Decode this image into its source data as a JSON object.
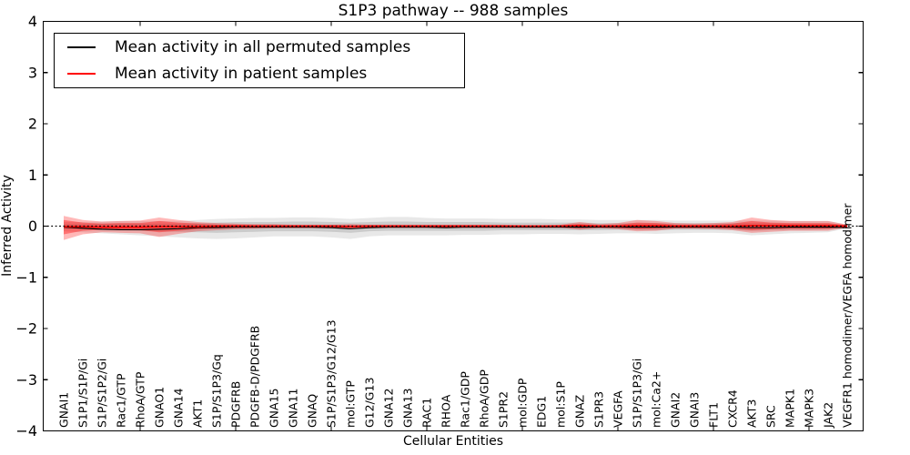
{
  "chart_data": {
    "type": "line",
    "title": "S1P3 pathway -- 988 samples",
    "xlabel": "Cellular Entities",
    "ylabel": "Inferred Activity",
    "ylim": [
      -4,
      4
    ],
    "yticks": [
      4,
      3,
      2,
      1,
      0,
      -1,
      -2,
      -3,
      -4
    ],
    "xtick_indices": [
      4,
      9,
      14,
      19,
      24,
      29,
      34,
      39
    ],
    "grid": false,
    "legend_position": "upper left",
    "categories": [
      "GNAI1",
      "S1P1/S1P/Gi",
      "S1P/S1P2/Gi",
      "Rac1/GTP",
      "RhoA/GTP",
      "GNAO1",
      "GNA14",
      "AKT1",
      "S1P/S1P3/Gq",
      "PDGFRB",
      "PDGFB-D/PDGFRB",
      "GNA15",
      "GNA11",
      "GNAQ",
      "S1P/S1P3/G12/G13",
      "mol:GTP",
      "G12/G13",
      "GNA12",
      "GNA13",
      "RAC1",
      "RHOA",
      "Rac1/GDP",
      "RhoA/GDP",
      "S1PR2",
      "mol:GDP",
      "EDG1",
      "mol:S1P",
      "GNAZ",
      "S1PR3",
      "VEGFA",
      "S1P/S1P3/Gi",
      "mol:Ca2+",
      "GNAI2",
      "GNAI3",
      "FLT1",
      "CXCR4",
      "AKT3",
      "SRC",
      "MAPK1",
      "MAPK3",
      "JAK2",
      "VEGFR1 homodimer/VEGFA homodimer"
    ],
    "series": [
      {
        "name": "Mean activity in all permuted samples",
        "color": "#000000",
        "style": "solid",
        "values": [
          -0.02,
          -0.04,
          -0.06,
          -0.07,
          -0.07,
          -0.06,
          -0.05,
          -0.03,
          -0.03,
          -0.02,
          -0.02,
          -0.02,
          -0.02,
          -0.02,
          -0.03,
          -0.05,
          -0.03,
          -0.02,
          -0.02,
          -0.02,
          -0.03,
          -0.02,
          -0.02,
          -0.02,
          -0.02,
          -0.02,
          -0.02,
          -0.02,
          -0.02,
          -0.02,
          -0.02,
          -0.02,
          -0.02,
          -0.02,
          -0.02,
          -0.02,
          -0.03,
          -0.03,
          -0.02,
          -0.02,
          -0.02,
          -0.03
        ]
      },
      {
        "name": "Mean activity in patient samples",
        "color": "#ff0000",
        "style": "solid",
        "values": [
          -0.01,
          -0.01,
          -0.02,
          -0.02,
          -0.02,
          -0.01,
          -0.01,
          -0.01,
          0,
          0,
          0,
          0,
          0,
          0,
          0,
          -0.01,
          0,
          0,
          0,
          0,
          0,
          0,
          0,
          0,
          0,
          0,
          0,
          0.01,
          0,
          0,
          0.01,
          0.01,
          0,
          0,
          0,
          0,
          0.01,
          0.01,
          0.01,
          0.01,
          0.01,
          0
        ]
      }
    ],
    "reference_line": {
      "y": 0,
      "color": "#000000",
      "style": "dotted"
    },
    "bands": [
      {
        "name": "permuted-outer",
        "color": "#000000",
        "opacity": 0.09,
        "upper": [
          0.08,
          0.08,
          0.09,
          0.1,
          0.1,
          0.1,
          0.1,
          0.12,
          0.14,
          0.15,
          0.16,
          0.16,
          0.17,
          0.17,
          0.16,
          0.14,
          0.16,
          0.18,
          0.18,
          0.16,
          0.15,
          0.15,
          0.15,
          0.14,
          0.14,
          0.14,
          0.13,
          0.13,
          0.12,
          0.12,
          0.12,
          0.12,
          0.11,
          0.11,
          0.11,
          0.11,
          0.11,
          0.11,
          0.1,
          0.1,
          0.1,
          0.03
        ],
        "lower": [
          -0.1,
          -0.12,
          -0.14,
          -0.16,
          -0.18,
          -0.2,
          -0.22,
          -0.24,
          -0.25,
          -0.24,
          -0.22,
          -0.2,
          -0.2,
          -0.2,
          -0.22,
          -0.25,
          -0.2,
          -0.18,
          -0.18,
          -0.18,
          -0.18,
          -0.17,
          -0.17,
          -0.16,
          -0.16,
          -0.15,
          -0.15,
          -0.16,
          -0.15,
          -0.14,
          -0.14,
          -0.15,
          -0.14,
          -0.13,
          -0.13,
          -0.14,
          -0.18,
          -0.16,
          -0.14,
          -0.13,
          -0.12,
          -0.04
        ]
      },
      {
        "name": "permuted-inner",
        "color": "#000000",
        "opacity": 0.12,
        "upper": [
          0.04,
          0.04,
          0.05,
          0.05,
          0.05,
          0.05,
          0.05,
          0.06,
          0.07,
          0.08,
          0.08,
          0.08,
          0.09,
          0.09,
          0.08,
          0.07,
          0.08,
          0.09,
          0.09,
          0.08,
          0.08,
          0.08,
          0.08,
          0.07,
          0.07,
          0.07,
          0.07,
          0.07,
          0.06,
          0.06,
          0.06,
          0.06,
          0.06,
          0.06,
          0.06,
          0.06,
          0.06,
          0.06,
          0.05,
          0.05,
          0.05,
          0.02
        ],
        "lower": [
          -0.05,
          -0.06,
          -0.07,
          -0.08,
          -0.09,
          -0.1,
          -0.11,
          -0.12,
          -0.13,
          -0.12,
          -0.11,
          -0.1,
          -0.1,
          -0.1,
          -0.11,
          -0.13,
          -0.1,
          -0.09,
          -0.09,
          -0.09,
          -0.09,
          -0.09,
          -0.09,
          -0.08,
          -0.08,
          -0.08,
          -0.08,
          -0.08,
          -0.08,
          -0.07,
          -0.07,
          -0.08,
          -0.07,
          -0.07,
          -0.07,
          -0.07,
          -0.09,
          -0.08,
          -0.07,
          -0.07,
          -0.06,
          -0.02
        ]
      },
      {
        "name": "patient-outer",
        "color": "#ff0000",
        "opacity": 0.28,
        "upper": [
          0.2,
          0.12,
          0.09,
          0.1,
          0.11,
          0.17,
          0.12,
          0.08,
          0.06,
          0.05,
          0.04,
          0.04,
          0.03,
          0.03,
          0.03,
          0.04,
          0.03,
          0.03,
          0.03,
          0.03,
          0.03,
          0.03,
          0.03,
          0.03,
          0.02,
          0.02,
          0.03,
          0.08,
          0.04,
          0.06,
          0.12,
          0.1,
          0.06,
          0.05,
          0.06,
          0.08,
          0.17,
          0.12,
          0.1,
          0.1,
          0.1,
          0.03
        ],
        "lower": [
          -0.27,
          -0.16,
          -0.12,
          -0.13,
          -0.14,
          -0.21,
          -0.15,
          -0.1,
          -0.08,
          -0.06,
          -0.05,
          -0.04,
          -0.04,
          -0.04,
          -0.04,
          -0.05,
          -0.04,
          -0.03,
          -0.03,
          -0.03,
          -0.03,
          -0.03,
          -0.03,
          -0.03,
          -0.03,
          -0.03,
          -0.03,
          -0.07,
          -0.04,
          -0.06,
          -0.1,
          -0.09,
          -0.05,
          -0.05,
          -0.06,
          -0.08,
          -0.13,
          -0.11,
          -0.09,
          -0.09,
          -0.09,
          -0.03
        ]
      },
      {
        "name": "patient-inner",
        "color": "#ff0000",
        "opacity": 0.38,
        "upper": [
          0.12,
          0.07,
          0.05,
          0.06,
          0.06,
          0.1,
          0.07,
          0.05,
          0.03,
          0.03,
          0.02,
          0.02,
          0.02,
          0.02,
          0.02,
          0.02,
          0.02,
          0.02,
          0.02,
          0.02,
          0.02,
          0.02,
          0.02,
          0.02,
          0.01,
          0.01,
          0.02,
          0.04,
          0.02,
          0.03,
          0.07,
          0.06,
          0.03,
          0.03,
          0.03,
          0.05,
          0.1,
          0.07,
          0.06,
          0.06,
          0.06,
          0.02
        ],
        "lower": [
          -0.16,
          -0.09,
          -0.07,
          -0.07,
          -0.08,
          -0.12,
          -0.09,
          -0.06,
          -0.04,
          -0.03,
          -0.03,
          -0.02,
          -0.02,
          -0.02,
          -0.02,
          -0.03,
          -0.02,
          -0.02,
          -0.02,
          -0.02,
          -0.02,
          -0.02,
          -0.02,
          -0.02,
          -0.02,
          -0.02,
          -0.02,
          -0.04,
          -0.02,
          -0.03,
          -0.06,
          -0.05,
          -0.03,
          -0.03,
          -0.03,
          -0.05,
          -0.08,
          -0.06,
          -0.05,
          -0.05,
          -0.05,
          -0.02
        ]
      }
    ]
  }
}
